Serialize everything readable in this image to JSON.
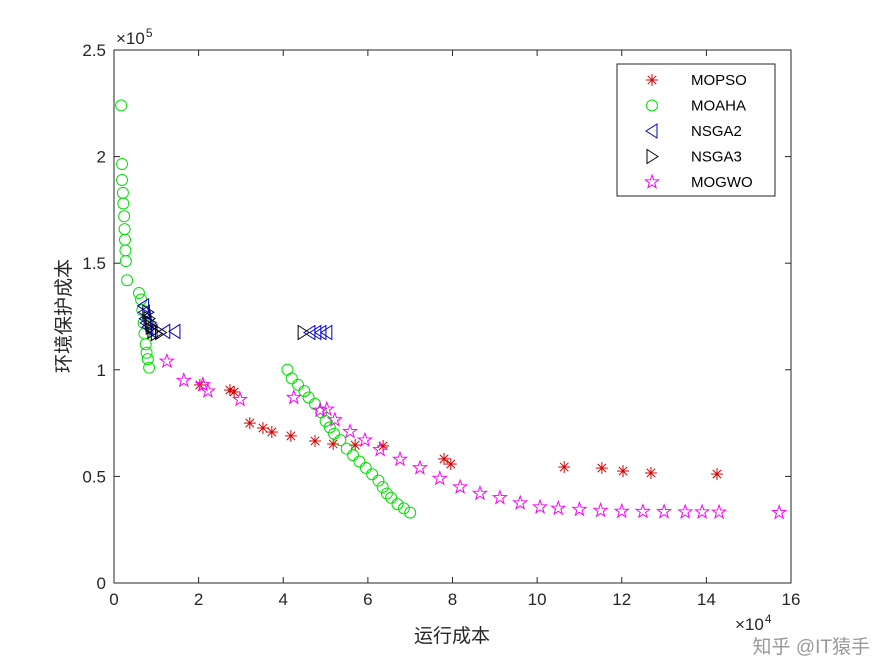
{
  "chart_data": {
    "type": "scatter",
    "xlabel": "运行成本",
    "ylabel": "环境保护成本",
    "x_exponent_label": "×10^4",
    "y_exponent_label": "×10^5",
    "xlim": [
      0,
      160000
    ],
    "ylim": [
      0,
      250000
    ],
    "xticks": [
      "0",
      "2",
      "4",
      "6",
      "8",
      "10",
      "12",
      "14",
      "16"
    ],
    "yticks": [
      "0",
      "0.5",
      "1",
      "1.5",
      "2",
      "2.5"
    ],
    "grid": false,
    "legend_position": "top-right",
    "series": [
      {
        "name": "MOPSO",
        "marker": "asterisk",
        "color": "#d40000",
        "points": [
          [
            20300,
            92900
          ],
          [
            27400,
            90500
          ],
          [
            28400,
            89600
          ],
          [
            32100,
            75000
          ],
          [
            35200,
            72700
          ],
          [
            37300,
            70800
          ],
          [
            41800,
            69000
          ],
          [
            47500,
            66600
          ],
          [
            51800,
            65200
          ],
          [
            57000,
            64700
          ],
          [
            63600,
            64300
          ],
          [
            78000,
            58200
          ],
          [
            79600,
            55800
          ],
          [
            106400,
            54400
          ],
          [
            115300,
            53900
          ],
          [
            120300,
            52500
          ],
          [
            126900,
            51600
          ],
          [
            142500,
            51100
          ]
        ]
      },
      {
        "name": "MOAHA",
        "marker": "circle",
        "color": "#00e000",
        "points": [
          [
            1700,
            224000
          ],
          [
            1900,
            196500
          ],
          [
            1900,
            189000
          ],
          [
            2100,
            183000
          ],
          [
            2200,
            178000
          ],
          [
            2400,
            172000
          ],
          [
            2500,
            166000
          ],
          [
            2600,
            161000
          ],
          [
            2700,
            156000
          ],
          [
            2800,
            151000
          ],
          [
            3100,
            142000
          ],
          [
            5900,
            136000
          ],
          [
            6400,
            133000
          ],
          [
            6700,
            128000
          ],
          [
            7000,
            122000
          ],
          [
            7200,
            117000
          ],
          [
            7500,
            112000
          ],
          [
            7700,
            108000
          ],
          [
            8000,
            105000
          ],
          [
            8300,
            101000
          ],
          [
            41000,
            100000
          ],
          [
            42000,
            96000
          ],
          [
            43500,
            93000
          ],
          [
            45000,
            90000
          ],
          [
            46000,
            87000
          ],
          [
            47500,
            84000
          ],
          [
            49000,
            80000
          ],
          [
            50000,
            76000
          ],
          [
            51000,
            73000
          ],
          [
            52000,
            70000
          ],
          [
            53500,
            67000
          ],
          [
            55000,
            63000
          ],
          [
            56500,
            60000
          ],
          [
            58000,
            57000
          ],
          [
            59500,
            54000
          ],
          [
            61000,
            51000
          ],
          [
            62500,
            48000
          ],
          [
            63500,
            45000
          ],
          [
            64500,
            42000
          ],
          [
            65500,
            40000
          ],
          [
            67000,
            37000
          ],
          [
            68500,
            35000
          ],
          [
            70000,
            33000
          ]
        ]
      },
      {
        "name": "NSGA2",
        "marker": "triangle-left",
        "color": "#0000cc",
        "points": [
          [
            7000,
            130000
          ],
          [
            7200,
            127000
          ],
          [
            7400,
            124000
          ],
          [
            7600,
            122000
          ],
          [
            8000,
            120000
          ],
          [
            9000,
            118000
          ],
          [
            12000,
            118000
          ],
          [
            14400,
            118000
          ],
          [
            46300,
            117500
          ],
          [
            47700,
            117500
          ],
          [
            48900,
            117500
          ],
          [
            50300,
            117500
          ]
        ]
      },
      {
        "name": "NSGA3",
        "marker": "triangle-right",
        "color": "#000000",
        "points": [
          [
            8000,
            127000
          ],
          [
            8300,
            124000
          ],
          [
            8600,
            122000
          ],
          [
            8800,
            120000
          ],
          [
            9200,
            118000
          ],
          [
            10000,
            117000
          ],
          [
            11000,
            117500
          ],
          [
            44700,
            117500
          ]
        ]
      },
      {
        "name": "MOGWO",
        "marker": "pentagram",
        "color": "#ff00ff",
        "points": [
          [
            12500,
            104000
          ],
          [
            16500,
            95000
          ],
          [
            21000,
            93000
          ],
          [
            22200,
            90000
          ],
          [
            29800,
            86000
          ],
          [
            42500,
            87000
          ],
          [
            48700,
            81000
          ],
          [
            50300,
            81500
          ],
          [
            52200,
            76500
          ],
          [
            55800,
            71000
          ],
          [
            59300,
            67000
          ],
          [
            62900,
            62500
          ],
          [
            67600,
            58000
          ],
          [
            72300,
            54000
          ],
          [
            77000,
            49000
          ],
          [
            81800,
            45000
          ],
          [
            86500,
            42000
          ],
          [
            91200,
            40000
          ],
          [
            96000,
            37500
          ],
          [
            100700,
            35600
          ],
          [
            105000,
            35000
          ],
          [
            110000,
            34500
          ],
          [
            115000,
            34000
          ],
          [
            120000,
            33600
          ],
          [
            125000,
            33500
          ],
          [
            130000,
            33400
          ],
          [
            135000,
            33300
          ],
          [
            139000,
            33300
          ],
          [
            143000,
            33200
          ],
          [
            157200,
            33000
          ]
        ]
      }
    ]
  },
  "watermark": "知乎 @IT猿手"
}
